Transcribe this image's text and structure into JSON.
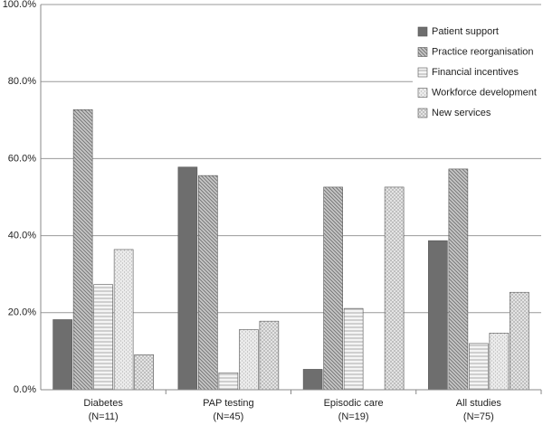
{
  "chart_data": {
    "type": "bar",
    "categories": [
      [
        "Diabetes",
        "(N=11)"
      ],
      [
        "PAP testing",
        "(N=45)"
      ],
      [
        "Episodic care",
        "(N=19)"
      ],
      [
        "All studies",
        "(N=75)"
      ]
    ],
    "series": [
      {
        "name": "Patient support",
        "color": "#6e6e6e",
        "values": [
          18.2,
          57.8,
          5.3,
          38.7
        ]
      },
      {
        "name": "Practice reorganisation",
        "color": "#c8c8c8",
        "values": [
          72.7,
          55.6,
          52.6,
          57.3
        ]
      },
      {
        "name": "Financial incentives",
        "color": "#f4f4f4",
        "values": [
          27.3,
          4.4,
          21.1,
          12.0
        ]
      },
      {
        "name": "Workforce development",
        "color": "#ebebeb",
        "values": [
          36.4,
          15.6,
          0,
          14.7
        ]
      },
      {
        "name": "New services",
        "color": "#f2f2f2",
        "values": [
          9.1,
          17.8,
          52.6,
          25.3
        ]
      }
    ],
    "ylim": [
      0,
      100
    ],
    "yticks": [
      {
        "value": 0,
        "label": "0.0%"
      },
      {
        "value": 20,
        "label": "20.0%"
      },
      {
        "value": 40,
        "label": "40.0%"
      },
      {
        "value": 60,
        "label": "60.0%"
      },
      {
        "value": 80,
        "label": "80.0%"
      },
      {
        "value": 100,
        "label": "100.0%"
      }
    ],
    "grid": true,
    "legend": "top-right"
  }
}
